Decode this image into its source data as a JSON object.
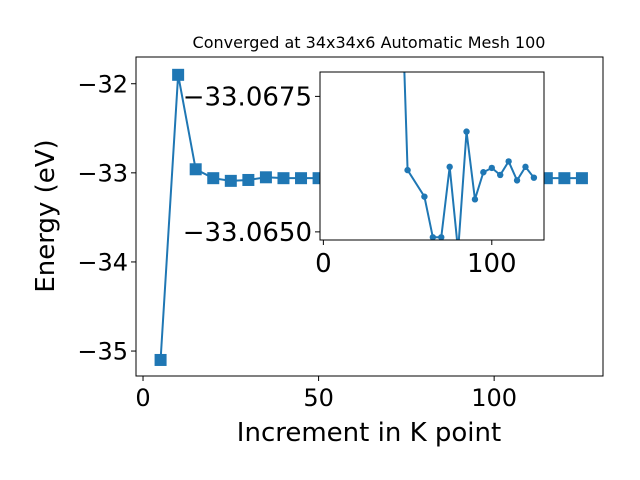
{
  "chart_data": [
    {
      "type": "line",
      "title": "Converged at 34x34x6 Automatic Mesh 100",
      "xlabel": "Increment in K point",
      "ylabel": "Energy (eV)",
      "xlim": [
        -2,
        131
      ],
      "ylim": [
        -35.28,
        -31.7
      ],
      "xticks": [
        0,
        50,
        100
      ],
      "xtick_labels": [
        "0",
        "50",
        "100"
      ],
      "yticks": [
        -35,
        -34,
        -33,
        -32
      ],
      "ytick_labels": [
        "−35",
        "−34",
        "−33",
        "−32"
      ],
      "marker": "square",
      "grid": false,
      "series": [
        {
          "color": "#1f77b4",
          "x": [
            5,
            10,
            15,
            20,
            25,
            30,
            35,
            40,
            45,
            50,
            55,
            60,
            65,
            70,
            75,
            80,
            85,
            90,
            95,
            100,
            105,
            110,
            115,
            120,
            125
          ],
          "y": [
            -35.1,
            -31.9,
            -32.96,
            -33.06,
            -33.09,
            -33.08,
            -33.05,
            -33.06,
            -33.06,
            -33.06,
            -33.06,
            -33.06,
            -33.06,
            -33.06,
            -33.06,
            -33.06,
            -33.06,
            -33.06,
            -33.06,
            -33.06,
            -33.06,
            -33.06,
            -33.06,
            -33.06,
            -33.06
          ]
        }
      ]
    },
    {
      "type": "line",
      "title": "",
      "xlabel": "",
      "ylabel": "",
      "xlim": [
        -2,
        131
      ],
      "ylim": [
        -33.06485,
        -33.06795
      ],
      "xticks": [
        0,
        100
      ],
      "xtick_labels": [
        "0",
        "100"
      ],
      "yticks": [
        -33.0675,
        -33.065
      ],
      "ytick_labels": [
        "−33.0675",
        "−33.0650"
      ],
      "marker": "circle",
      "grid": false,
      "series": [
        {
          "color": "#1f77b4",
          "x": [
            47,
            50,
            60,
            65,
            70,
            75,
            80,
            85,
            90,
            95,
            100,
            105,
            110,
            115,
            120,
            125
          ],
          "y": [
            -33.069,
            -33.06614,
            -33.06565,
            -33.0649,
            -33.0649,
            -33.0662,
            -33.06465,
            -33.06685,
            -33.0656,
            -33.0661,
            -33.06618,
            -33.06605,
            -33.0663,
            -33.06595,
            -33.0662,
            -33.066
          ]
        }
      ]
    }
  ]
}
